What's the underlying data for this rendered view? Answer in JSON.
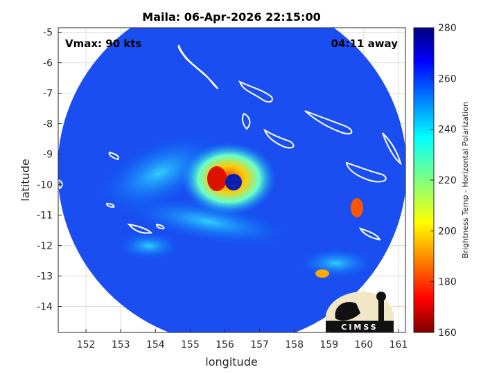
{
  "chart_data": {
    "type": "heatmap",
    "title": "Maila: 06-Apr-2026 22:15:00",
    "xlabel": "longitude",
    "ylabel": "latitude",
    "xlim": [
      151.2,
      161.2
    ],
    "ylim": [
      -14.85,
      -4.85
    ],
    "x_ticks": [
      152,
      153,
      154,
      155,
      156,
      157,
      158,
      159,
      160,
      161
    ],
    "x_tick_labels": [
      "152",
      "153",
      "154",
      "155",
      "156",
      "157",
      "158",
      "159",
      "160",
      "161"
    ],
    "y_ticks": [
      -5,
      -6,
      -7,
      -8,
      -9,
      -10,
      -11,
      -12,
      -13,
      -14
    ],
    "y_tick_labels": [
      "-5",
      "-6",
      "-7",
      "-8",
      "-9",
      "-10",
      "-11",
      "-12",
      "-13",
      "-14"
    ],
    "grid": true,
    "colorbar": {
      "label": "Brightness Temp - Horizontal Polarization",
      "range": [
        160,
        280
      ],
      "ticks": [
        160,
        180,
        200,
        220,
        240,
        260,
        280
      ],
      "tick_labels": [
        "160",
        "180",
        "200",
        "220",
        "240",
        "260",
        "280"
      ],
      "colormap": "jet"
    },
    "annotations": {
      "vmax": "Vmax: 90 kts",
      "time_away": "04:11 away"
    },
    "storm": {
      "eye_center": [
        156.3,
        -10.0
      ],
      "eyewall_min_temp_estimate": 172,
      "background_temp_estimate": 262
    },
    "swath": {
      "center": [
        156.2,
        -9.6
      ],
      "radius_deg": 5.0
    }
  },
  "logo": {
    "text": "CIMSS"
  }
}
